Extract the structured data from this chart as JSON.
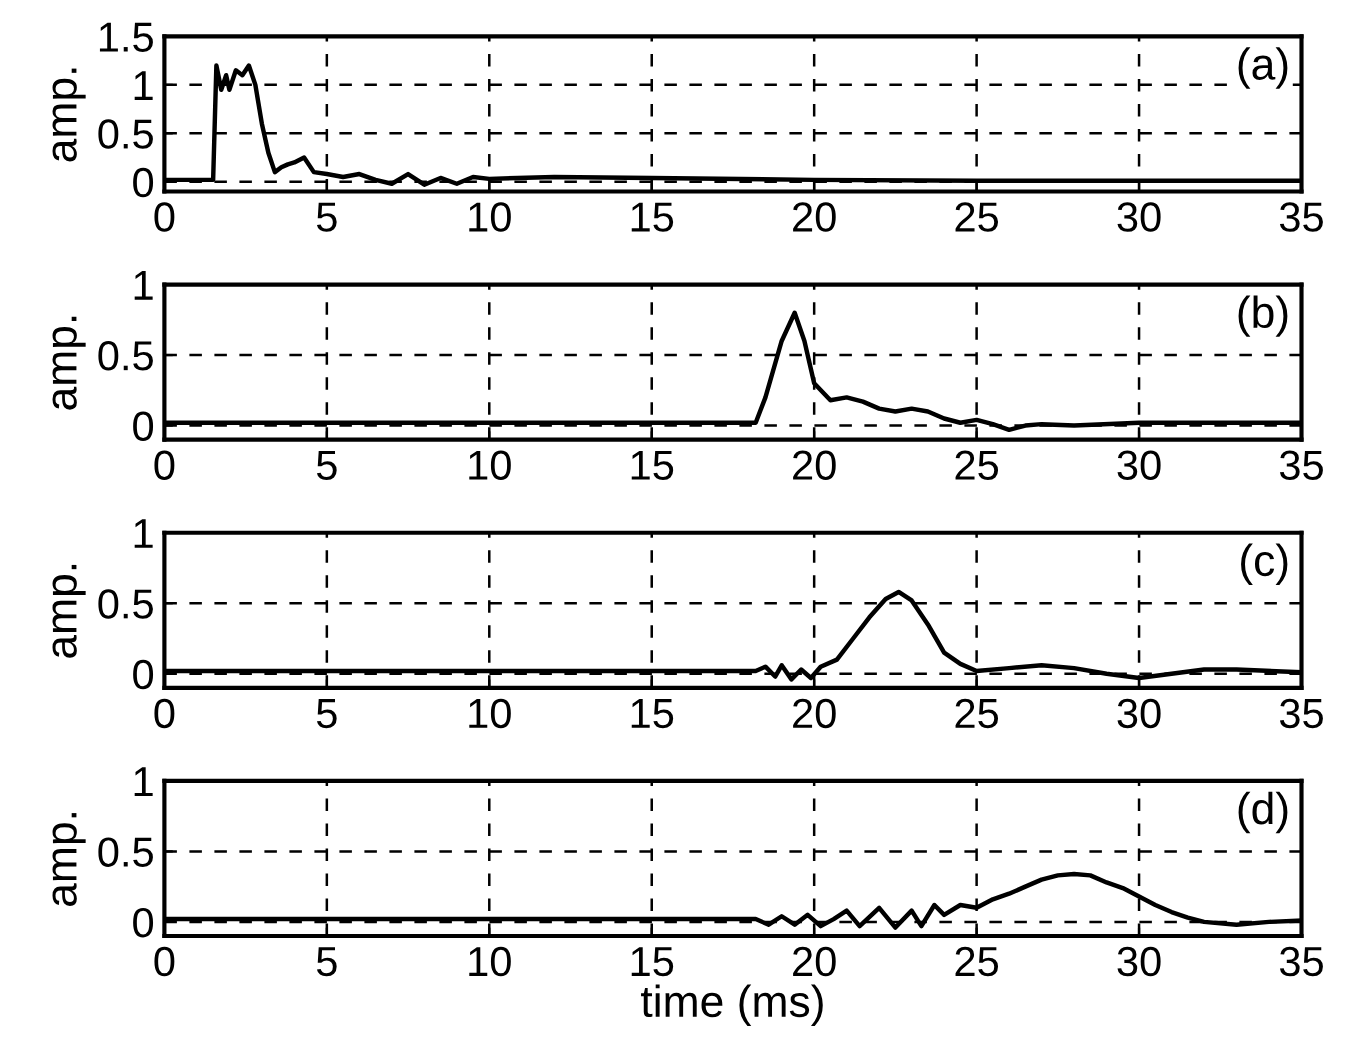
{
  "chart_data": [
    {
      "type": "line",
      "ylabel": "amp.",
      "annotations": [
        "(a)"
      ],
      "xlim": [
        0,
        35
      ],
      "xticks": [
        0,
        5,
        10,
        15,
        20,
        25,
        30,
        35
      ],
      "ylim": [
        -0.1,
        1.5
      ],
      "yticks": [
        0,
        0.5,
        1,
        1.5
      ],
      "grid": true,
      "line_style": "solid",
      "series": [
        {
          "color": "#000000",
          "x": [
            0,
            1.5,
            1.6,
            1.75,
            1.9,
            2.0,
            2.2,
            2.4,
            2.6,
            2.8,
            3.0,
            3.2,
            3.4,
            3.6,
            3.8,
            4.0,
            4.3,
            4.6,
            5.0,
            5.5,
            6.0,
            6.5,
            7.0,
            7.5,
            8.0,
            8.5,
            9.0,
            9.5,
            10,
            12,
            15,
            20,
            25,
            35
          ],
          "values": [
            0.02,
            0.02,
            1.2,
            0.95,
            1.1,
            0.95,
            1.15,
            1.1,
            1.2,
            1.0,
            0.6,
            0.3,
            0.1,
            0.15,
            0.18,
            0.2,
            0.25,
            0.1,
            0.08,
            0.05,
            0.08,
            0.02,
            -0.02,
            0.08,
            -0.03,
            0.04,
            -0.02,
            0.05,
            0.03,
            0.05,
            0.04,
            0.02,
            0.01,
            0.01
          ]
        }
      ]
    },
    {
      "type": "line",
      "ylabel": "amp.",
      "annotations": [
        "(b)"
      ],
      "xlim": [
        0,
        35
      ],
      "xticks": [
        0,
        5,
        10,
        15,
        20,
        25,
        30,
        35
      ],
      "ylim": [
        -0.1,
        1
      ],
      "yticks": [
        0,
        0.5,
        1
      ],
      "grid": true,
      "line_style": "solid",
      "series": [
        {
          "color": "#000000",
          "x": [
            0,
            18.2,
            18.5,
            19,
            19.4,
            19.7,
            20,
            20.5,
            21,
            21.5,
            22,
            22.5,
            23,
            23.5,
            24,
            24.5,
            25,
            25.5,
            26,
            26.5,
            27,
            28,
            30,
            32,
            35
          ],
          "values": [
            0.02,
            0.02,
            0.2,
            0.6,
            0.8,
            0.6,
            0.3,
            0.18,
            0.2,
            0.17,
            0.12,
            0.1,
            0.12,
            0.1,
            0.05,
            0.02,
            0.04,
            0.01,
            -0.03,
            0.0,
            0.01,
            0.0,
            0.02,
            0.02,
            0.02
          ]
        }
      ]
    },
    {
      "type": "line",
      "ylabel": "amp.",
      "annotations": [
        "(c)"
      ],
      "xlim": [
        0,
        35
      ],
      "xticks": [
        0,
        5,
        10,
        15,
        20,
        25,
        30,
        35
      ],
      "ylim": [
        -0.1,
        1
      ],
      "yticks": [
        0,
        0.5,
        1
      ],
      "grid": true,
      "line_style": "solid",
      "series": [
        {
          "color": "#000000",
          "x": [
            0,
            18.2,
            18.5,
            18.8,
            19.0,
            19.3,
            19.6,
            19.9,
            20.2,
            20.7,
            21.2,
            21.7,
            22.2,
            22.6,
            23,
            23.5,
            24,
            24.5,
            25,
            26,
            27,
            28,
            29,
            30,
            31,
            32,
            33,
            35
          ],
          "values": [
            0.02,
            0.02,
            0.05,
            -0.02,
            0.06,
            -0.04,
            0.03,
            -0.03,
            0.05,
            0.1,
            0.25,
            0.4,
            0.53,
            0.58,
            0.52,
            0.35,
            0.15,
            0.07,
            0.02,
            0.04,
            0.06,
            0.04,
            0.0,
            -0.03,
            0.0,
            0.03,
            0.03,
            0.01
          ]
        }
      ]
    },
    {
      "type": "line",
      "ylabel": "amp.",
      "xlabel": "time (ms)",
      "annotations": [
        "(d)"
      ],
      "xlim": [
        0,
        35
      ],
      "xticks": [
        0,
        5,
        10,
        15,
        20,
        25,
        30,
        35
      ],
      "ylim": [
        -0.1,
        1
      ],
      "yticks": [
        0,
        0.5,
        1
      ],
      "grid": true,
      "line_style": "solid",
      "series": [
        {
          "color": "#000000",
          "x": [
            0,
            18.2,
            18.6,
            19,
            19.4,
            19.8,
            20.2,
            20.6,
            21,
            21.4,
            22,
            22.5,
            23,
            23.3,
            23.7,
            24,
            24.5,
            25,
            25.5,
            26,
            26.5,
            27,
            27.5,
            28,
            28.5,
            29,
            29.5,
            30,
            30.5,
            31,
            31.5,
            32,
            33,
            34,
            35
          ],
          "values": [
            0.02,
            0.02,
            -0.02,
            0.04,
            -0.02,
            0.05,
            -0.03,
            0.02,
            0.08,
            -0.03,
            0.1,
            -0.04,
            0.08,
            -0.03,
            0.12,
            0.05,
            0.12,
            0.1,
            0.16,
            0.2,
            0.25,
            0.3,
            0.33,
            0.34,
            0.33,
            0.28,
            0.24,
            0.18,
            0.12,
            0.07,
            0.03,
            0.0,
            -0.02,
            0.0,
            0.01
          ]
        }
      ]
    }
  ]
}
